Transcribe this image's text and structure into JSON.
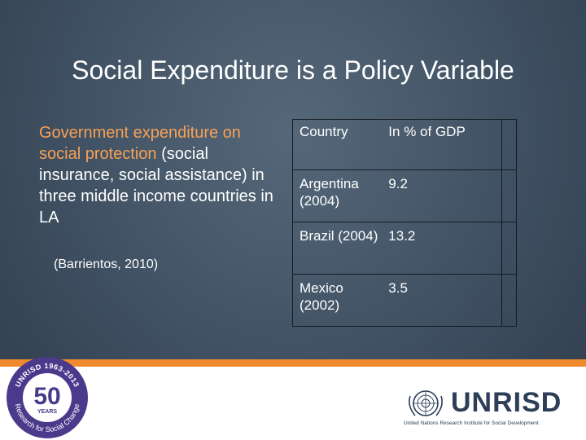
{
  "slide": {
    "title": "Social Expenditure is a Policy Variable",
    "body_highlight": "Government expenditure on social protection",
    "body_rest": " (social insurance, social assistance) in three middle income countries in LA",
    "citation": "(Barrientos, 2010)"
  },
  "table": {
    "header": {
      "country": "Country",
      "value": "In % of GDP"
    },
    "rows": [
      {
        "country": "Argentina (2004)",
        "value": "9.2"
      },
      {
        "country": "Brazil (2004)",
        "value": "13.2"
      },
      {
        "country": "Mexico (2002)",
        "value": "3.5"
      }
    ]
  },
  "badge": {
    "top_text": "UNRISD 1963-2013",
    "bottom_text": "Research for Social Change",
    "number": "50",
    "years": "YEARS"
  },
  "logo": {
    "word": "UNRISD",
    "subtitle": "United Nations Research Institute for Social Development"
  },
  "colors": {
    "accent_orange": "#f08a2e",
    "highlight_text": "#f7a155",
    "badge_purple": "#4b3a8c",
    "logo_navy": "#2c3e58"
  }
}
